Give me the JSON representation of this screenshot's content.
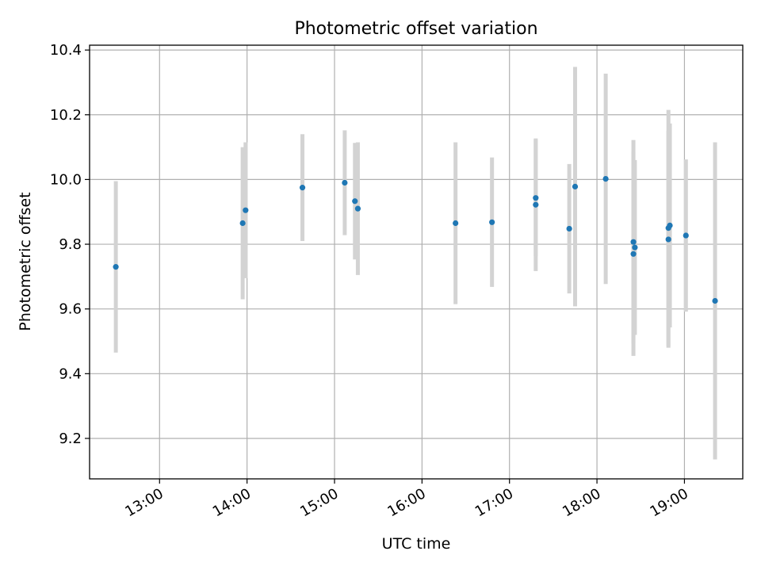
{
  "chart_data": {
    "type": "scatter",
    "title": "Photometric offset variation",
    "xlabel": "UTC time",
    "ylabel": "Photometric offset",
    "xlim": [
      "12:12",
      "19:40"
    ],
    "ylim": [
      9.075,
      10.415
    ],
    "grid": true,
    "x_ticks": [
      "13:00",
      "14:00",
      "15:00",
      "16:00",
      "17:00",
      "18:00",
      "19:00"
    ],
    "y_ticks": [
      "9.2",
      "9.4",
      "9.6",
      "9.8",
      "10.0",
      "10.2",
      "10.4"
    ],
    "colors": {
      "point": "#1f77b4",
      "errorbar": "#d3d3d3",
      "grid": "#b0b0b0",
      "axis": "#000000"
    },
    "points": [
      {
        "t": "12:30",
        "y": 9.73,
        "err": 0.265
      },
      {
        "t": "13:57",
        "y": 9.865,
        "err": 0.235
      },
      {
        "t": "13:59",
        "y": 9.905,
        "err": 0.21
      },
      {
        "t": "14:38",
        "y": 9.975,
        "err": 0.165
      },
      {
        "t": "15:07",
        "y": 9.99,
        "err": 0.162
      },
      {
        "t": "15:14",
        "y": 9.933,
        "err": 0.18
      },
      {
        "t": "15:16",
        "y": 9.91,
        "err": 0.205
      },
      {
        "t": "16:23",
        "y": 9.865,
        "err": 0.25
      },
      {
        "t": "16:48",
        "y": 9.868,
        "err": 0.2
      },
      {
        "t": "17:18",
        "y": 9.943,
        "err": 0.18
      },
      {
        "t": "17:18",
        "y": 9.922,
        "err": 0.205
      },
      {
        "t": "17:41",
        "y": 9.848,
        "err": 0.2
      },
      {
        "t": "17:45",
        "y": 9.978,
        "err": 0.37
      },
      {
        "t": "18:06",
        "y": 10.002,
        "err": 0.325
      },
      {
        "t": "18:25",
        "y": 9.807,
        "err": 0.315
      },
      {
        "t": "18:26",
        "y": 9.79,
        "err": 0.27
      },
      {
        "t": "18:25",
        "y": 9.77,
        "err": 0.315
      },
      {
        "t": "18:49",
        "y": 9.85,
        "err": 0.365
      },
      {
        "t": "18:50",
        "y": 9.858,
        "err": 0.315
      },
      {
        "t": "18:49",
        "y": 9.815,
        "err": 0.335
      },
      {
        "t": "19:01",
        "y": 9.827,
        "err": 0.235
      },
      {
        "t": "19:21",
        "y": 9.625,
        "err": 0.49
      }
    ]
  }
}
